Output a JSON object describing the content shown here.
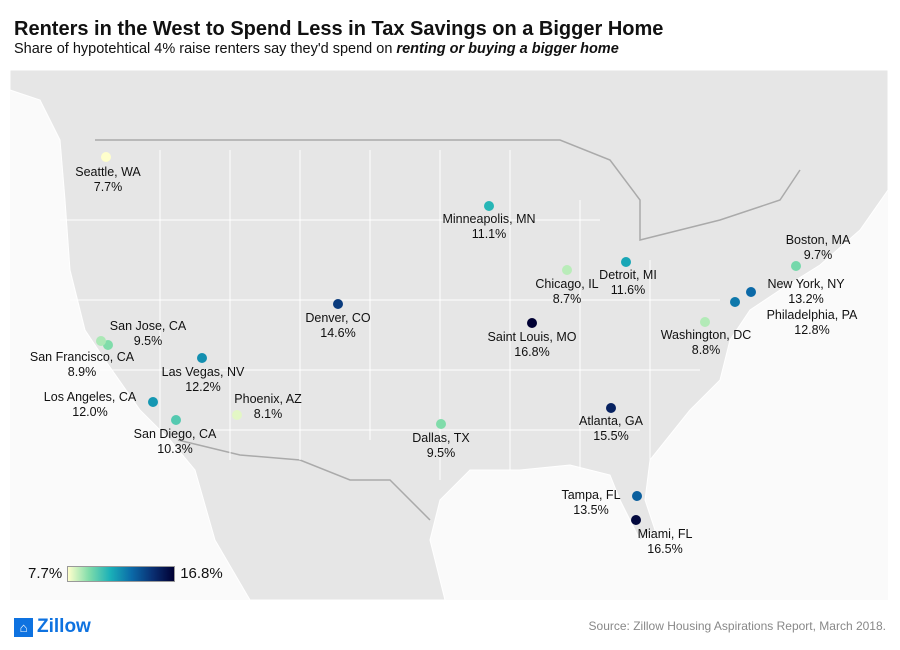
{
  "title": "Renters in the West to Spend Less in Tax Savings on a Bigger Home",
  "subtitle_prefix": "Share of hypotehtical 4% raise renters say they'd spend on ",
  "subtitle_emphasis": "renting or buying a bigger home",
  "legend": {
    "min_label": "7.7%",
    "max_label": "16.8%",
    "min": 7.7,
    "max": 16.8,
    "colors": [
      "#ffffcc",
      "#7fdcaa",
      "#1ab0b8",
      "#0b6aa8",
      "#0a2f72",
      "#000033"
    ]
  },
  "cities": [
    {
      "name": "Seattle, WA",
      "value_label": "7.7%",
      "value": 7.7
    },
    {
      "name": "Minneapolis, MN",
      "value_label": "11.1%",
      "value": 11.1
    },
    {
      "name": "Chicago, IL",
      "value_label": "8.7%",
      "value": 8.7
    },
    {
      "name": "Detroit, MI",
      "value_label": "11.6%",
      "value": 11.6
    },
    {
      "name": "Boston, MA",
      "value_label": "9.7%",
      "value": 9.7
    },
    {
      "name": "New York, NY",
      "value_label": "13.2%",
      "value": 13.2
    },
    {
      "name": "Philadelphia, PA",
      "value_label": "12.8%",
      "value": 12.8
    },
    {
      "name": "Washington, DC",
      "value_label": "8.8%",
      "value": 8.8
    },
    {
      "name": "Saint Louis, MO",
      "value_label": "16.8%",
      "value": 16.8
    },
    {
      "name": "Denver, CO",
      "value_label": "14.6%",
      "value": 14.6
    },
    {
      "name": "San Jose, CA",
      "value_label": "9.5%",
      "value": 9.5
    },
    {
      "name": "San Francisco, CA",
      "value_label": "8.9%",
      "value": 8.9
    },
    {
      "name": "Las Vegas, NV",
      "value_label": "12.2%",
      "value": 12.2
    },
    {
      "name": "Los Angeles, CA",
      "value_label": "12.0%",
      "value": 12.0
    },
    {
      "name": "San Diego, CA",
      "value_label": "10.3%",
      "value": 10.3
    },
    {
      "name": "Phoenix, AZ",
      "value_label": "8.1%",
      "value": 8.1
    },
    {
      "name": "Dallas, TX",
      "value_label": "9.5%",
      "value": 9.5
    },
    {
      "name": "Atlanta, GA",
      "value_label": "15.5%",
      "value": 15.5
    },
    {
      "name": "Tampa, FL",
      "value_label": "13.5%",
      "value": 13.5
    },
    {
      "name": "Miami, FL",
      "value_label": "16.5%",
      "value": 16.5
    }
  ],
  "logo": "Zillow",
  "source": "Source: Zillow Housing Aspirations Report, March 2018."
}
